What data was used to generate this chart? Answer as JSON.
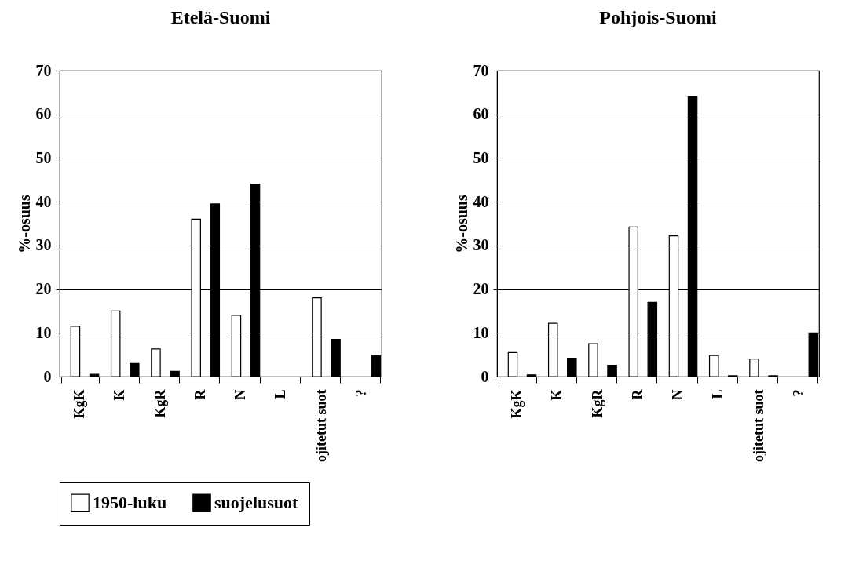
{
  "chart_data": [
    {
      "type": "bar",
      "title": "Etelä-Suomi",
      "ylabel": "%-osuus",
      "categories": [
        "KgK",
        "K",
        "KgR",
        "R",
        "N",
        "L",
        "ojitetut suot",
        "?"
      ],
      "series": [
        {
          "name": "1950-luku",
          "color": "#ffffff",
          "values": [
            11.5,
            15,
            6.3,
            36,
            14,
            null,
            18,
            null
          ]
        },
        {
          "name": "suojelusuot",
          "color": "#000000",
          "values": [
            0.5,
            3,
            1.2,
            39.5,
            44,
            null,
            8.5,
            4.8
          ]
        }
      ],
      "ylim": [
        0,
        70
      ],
      "yticks": [
        0,
        10,
        20,
        30,
        40,
        50,
        60,
        70
      ],
      "grid": "y",
      "legend": "bottom"
    },
    {
      "type": "bar",
      "title": "Pohjois-Suomi",
      "ylabel": "%-osuus",
      "categories": [
        "KgK",
        "K",
        "KgR",
        "R",
        "N",
        "L",
        "ojitetut suot",
        "?"
      ],
      "series": [
        {
          "name": "1950-luku",
          "color": "#ffffff",
          "values": [
            5.5,
            12.2,
            7.5,
            34.2,
            32.2,
            4.8,
            4,
            null
          ]
        },
        {
          "name": "suojelusuot",
          "color": "#000000",
          "values": [
            0.4,
            4.2,
            2.6,
            17,
            64,
            0.2,
            0.2,
            10
          ]
        }
      ],
      "ylim": [
        0,
        70
      ],
      "yticks": [
        0,
        10,
        20,
        30,
        40,
        50,
        60,
        70
      ],
      "grid": "y",
      "legend": "bottom"
    }
  ]
}
